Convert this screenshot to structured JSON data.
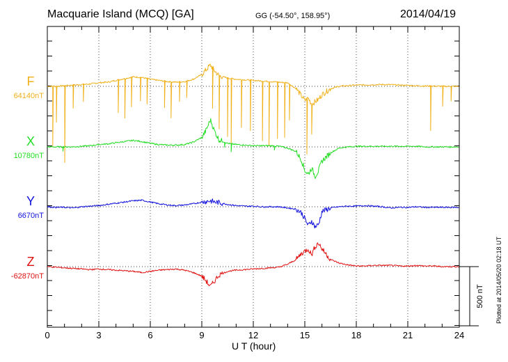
{
  "header": {
    "title": "Macquarie Island (MCQ)  [GA]",
    "coords": "GG (-54.50°, 158.95°)",
    "date": "2014/04/19"
  },
  "footer": {
    "xlabel": "U T (hour)",
    "plotted": "Plotted at 2014/05/20 02:18 UT"
  },
  "scale": {
    "label": "500 nT",
    "value_nT": 500
  },
  "colors": {
    "F": "#f0b018",
    "X": "#22dd22",
    "Y": "#1010dd",
    "Z": "#e01010"
  },
  "chart_data": {
    "type": "line",
    "title": "Macquarie Island (MCQ)  [GA]",
    "xlabel": "U T (hour)",
    "ylabel": "",
    "xlim": [
      0,
      24
    ],
    "xticks": [
      "0",
      "3",
      "6",
      "9",
      "12",
      "15",
      "18",
      "21",
      "24"
    ],
    "grid": true,
    "units": "nT deviation from baseline (scale bar 500 nT)",
    "x": [
      0,
      0.5,
      1,
      1.5,
      2,
      2.5,
      3,
      3.5,
      4,
      4.5,
      5,
      5.5,
      6,
      6.5,
      7,
      7.5,
      8,
      8.5,
      9,
      9.25,
      9.5,
      9.75,
      10,
      10.5,
      11,
      11.5,
      12,
      12.5,
      13,
      13.5,
      14,
      14.5,
      14.8,
      15,
      15.2,
      15.4,
      15.6,
      15.8,
      16,
      16.5,
      17,
      17.5,
      18,
      18.5,
      19,
      19.5,
      20,
      20.5,
      21,
      21.5,
      22,
      22.5,
      23,
      23.5,
      24
    ],
    "series": [
      {
        "name": "F",
        "baseline": "64140nT",
        "values": [
          0,
          0,
          5,
          10,
          15,
          20,
          30,
          35,
          50,
          65,
          80,
          75,
          60,
          50,
          40,
          35,
          40,
          60,
          100,
          140,
          180,
          130,
          90,
          70,
          60,
          55,
          50,
          45,
          40,
          35,
          30,
          -20,
          -80,
          -120,
          -100,
          -150,
          -130,
          -110,
          -70,
          -20,
          0,
          5,
          10,
          12,
          14,
          15,
          14,
          10,
          8,
          5,
          3,
          2,
          0,
          0,
          0
        ],
        "spikes": [
          {
            "x": 0.3,
            "depth": 500
          },
          {
            "x": 0.5,
            "depth": 300
          },
          {
            "x": 1.0,
            "depth": 650
          },
          {
            "x": 1.5,
            "depth": 200
          },
          {
            "x": 2.1,
            "depth": 150
          },
          {
            "x": 4.1,
            "depth": 280
          },
          {
            "x": 4.5,
            "depth": 330
          },
          {
            "x": 4.9,
            "depth": 250
          },
          {
            "x": 5.4,
            "depth": 200
          },
          {
            "x": 5.8,
            "depth": 220
          },
          {
            "x": 6.8,
            "depth": 230
          },
          {
            "x": 7.2,
            "depth": 300
          },
          {
            "x": 7.7,
            "depth": 170
          },
          {
            "x": 8.1,
            "depth": 140
          },
          {
            "x": 9.6,
            "depth": 350
          },
          {
            "x": 10.0,
            "depth": 450
          },
          {
            "x": 10.5,
            "depth": 500
          },
          {
            "x": 10.7,
            "depth": 560
          },
          {
            "x": 11.3,
            "depth": 400
          },
          {
            "x": 11.8,
            "depth": 430
          },
          {
            "x": 12.5,
            "depth": 500
          },
          {
            "x": 12.9,
            "depth": 540
          },
          {
            "x": 13.4,
            "depth": 480
          },
          {
            "x": 13.8,
            "depth": 460
          },
          {
            "x": 14.1,
            "depth": 300
          },
          {
            "x": 15.1,
            "depth": 450
          },
          {
            "x": 15.4,
            "depth": 250
          },
          {
            "x": 22.3,
            "depth": 380
          },
          {
            "x": 23.0,
            "depth": 170
          },
          {
            "x": 23.5,
            "depth": 120
          }
        ]
      },
      {
        "name": "X",
        "baseline": "10780nT",
        "values": [
          0,
          0,
          0,
          0,
          5,
          10,
          20,
          25,
          35,
          45,
          55,
          45,
          30,
          20,
          15,
          15,
          20,
          40,
          80,
          140,
          230,
          130,
          60,
          30,
          20,
          15,
          10,
          10,
          10,
          5,
          -10,
          -40,
          -110,
          -200,
          -230,
          -180,
          -250,
          -200,
          -120,
          -50,
          -10,
          0,
          5,
          5,
          5,
          5,
          5,
          5,
          5,
          5,
          0,
          0,
          0,
          0,
          0
        ],
        "spikes": [
          {
            "x": 0.9,
            "depth": 40
          },
          {
            "x": 10.3,
            "depth": 40
          },
          {
            "x": 10.7,
            "depth": 70
          },
          {
            "x": 13.2,
            "depth": 30
          }
        ]
      },
      {
        "name": "Y",
        "baseline": "6670nT",
        "values": [
          0,
          -5,
          -5,
          -10,
          0,
          5,
          10,
          20,
          30,
          40,
          50,
          55,
          40,
          25,
          15,
          10,
          15,
          25,
          40,
          45,
          50,
          40,
          35,
          20,
          10,
          5,
          5,
          0,
          0,
          0,
          -10,
          -20,
          -50,
          -100,
          -160,
          -120,
          -170,
          -150,
          -40,
          -10,
          0,
          5,
          5,
          10,
          5,
          0,
          -10,
          -5,
          -5,
          0,
          -5,
          -5,
          -5,
          -5,
          -5
        ],
        "spikes": []
      },
      {
        "name": "Z",
        "baseline": "-62870nT",
        "values": [
          0,
          -5,
          -10,
          -15,
          -20,
          -25,
          -20,
          -25,
          -30,
          -35,
          -40,
          -50,
          -40,
          -30,
          -25,
          -20,
          -30,
          -50,
          -80,
          -120,
          -170,
          -120,
          -70,
          -40,
          -30,
          -25,
          -20,
          -15,
          -10,
          -5,
          20,
          60,
          110,
          130,
          150,
          100,
          170,
          200,
          150,
          60,
          30,
          15,
          5,
          5,
          10,
          10,
          10,
          5,
          5,
          10,
          5,
          5,
          0,
          0,
          0
        ],
        "spikes": []
      }
    ]
  }
}
